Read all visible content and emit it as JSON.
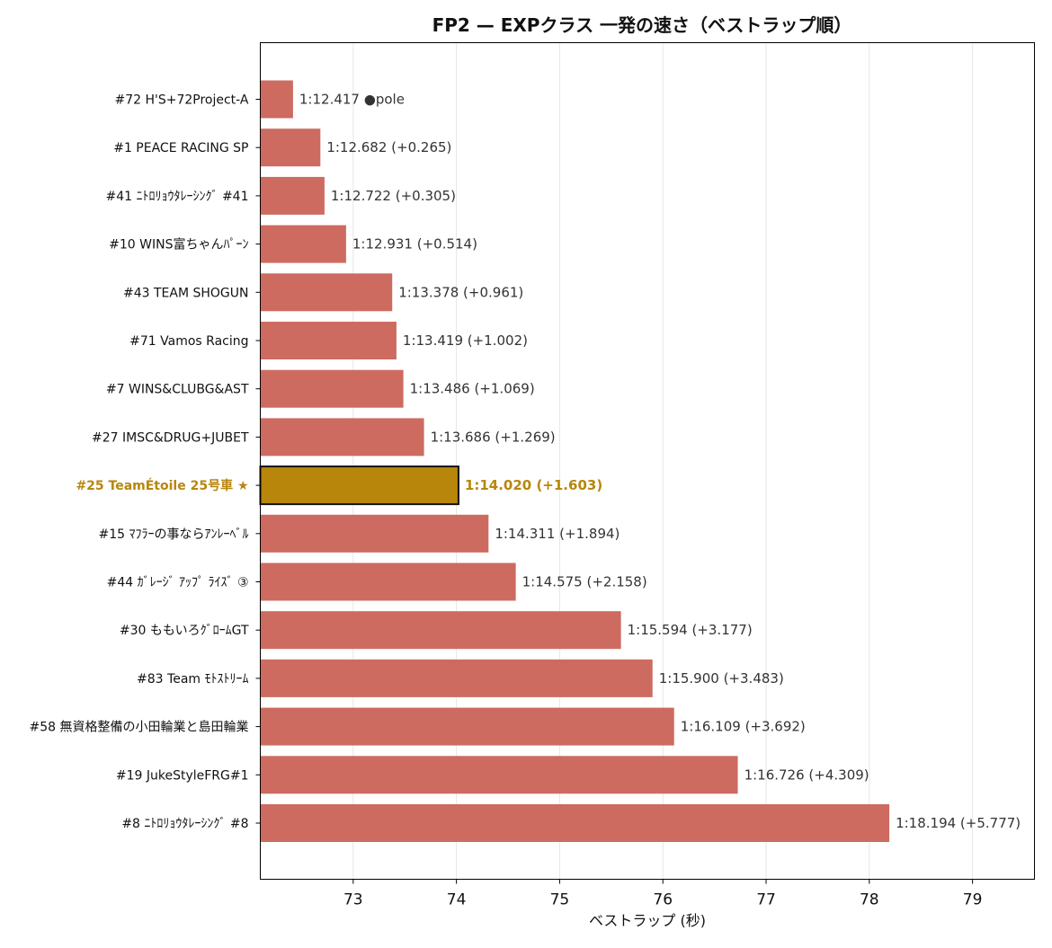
{
  "chart_data": {
    "type": "bar",
    "orientation": "horizontal",
    "title": "FP2 — EXPクラス 一発の速さ（ベストラップ順）",
    "xlabel": "ベストラップ (秒)",
    "ylabel": "",
    "xlim": [
      72.1,
      79.6
    ],
    "xticks": [
      73,
      74,
      75,
      76,
      77,
      78,
      79
    ],
    "grid": "vertical",
    "bar_color": "#cd6b61",
    "highlight_color": "#b8860b",
    "categories": [
      "#72 H'S+72Project-A",
      "#1 PEACE RACING SP",
      "#41 ﾆﾄﾛﾘｮｳﾀﾚｰｼﾝｸﾞ #41",
      "#10 WINS富ちゃんﾊﾟｰﾝ",
      "#43 TEAM SHOGUN",
      "#71 Vamos Racing",
      "#7 WINS&CLUBG&AST",
      "#27 IMSC&DRUG+JUBET",
      "#25 TeamÉtoile 25号車 ★",
      "#15 ﾏﾌﾗｰの事ならｱﾝﾚｰﾍﾞﾙ",
      "#44 ｶﾞﾚｰｼﾞ ｱｯﾌﾟ ﾗｲｽﾞ ③",
      "#30 ももいろｸﾞﾛｰﾑGT",
      "#83 Team ﾓﾄｽﾄﾘｰﾑ",
      "#58 無資格整備の小田輪業と島田輪業",
      "#19 JukeStyleFRG#1",
      "#8 ﾆﾄﾛﾘｮｳﾀﾚｰｼﾝｸﾞ #8"
    ],
    "values": [
      72.417,
      72.682,
      72.722,
      72.931,
      73.378,
      73.419,
      73.486,
      73.686,
      74.02,
      74.311,
      74.575,
      75.594,
      75.9,
      76.109,
      76.726,
      78.194
    ],
    "labels": [
      "1:12.417  ●pole",
      "1:12.682  (+0.265)",
      "1:12.722  (+0.305)",
      "1:12.931  (+0.514)",
      "1:13.378  (+0.961)",
      "1:13.419  (+1.002)",
      "1:13.486  (+1.069)",
      "1:13.686  (+1.269)",
      "1:14.020  (+1.603)",
      "1:14.311  (+1.894)",
      "1:14.575  (+2.158)",
      "1:15.594  (+3.177)",
      "1:15.900  (+3.483)",
      "1:16.109  (+3.692)",
      "1:16.726  (+4.309)",
      "1:18.194  (+5.777)"
    ],
    "highlight_index": 8
  }
}
